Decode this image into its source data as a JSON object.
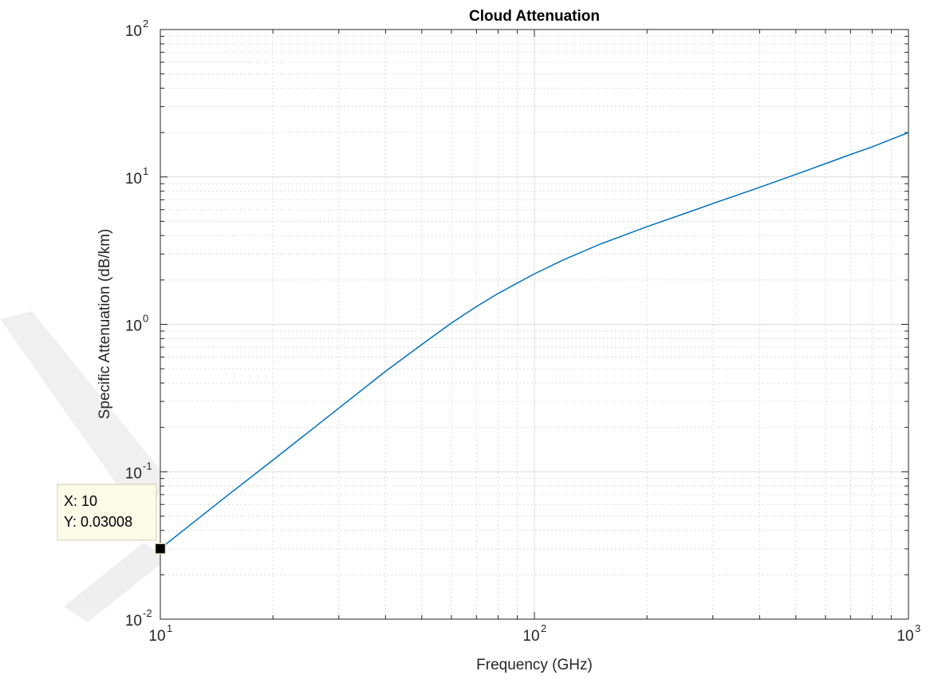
{
  "chart_data": {
    "type": "line",
    "title": "Cloud Attenuation",
    "xlabel": "Frequency (GHz)",
    "ylabel": "Specific Attenuation (dB/km)",
    "xscale": "log",
    "yscale": "log",
    "xlim": [
      10,
      1000
    ],
    "ylim": [
      0.01,
      100
    ],
    "grid": "major and minor",
    "x_ticks": [
      {
        "base": "10",
        "exp": "1",
        "value": 10
      },
      {
        "base": "10",
        "exp": "2",
        "value": 100
      },
      {
        "base": "10",
        "exp": "3",
        "value": 1000
      }
    ],
    "y_ticks": [
      {
        "base": "10",
        "exp": "-2",
        "value": 0.01
      },
      {
        "base": "10",
        "exp": "-1",
        "value": 0.1
      },
      {
        "base": "10",
        "exp": "0",
        "value": 1
      },
      {
        "base": "10",
        "exp": "1",
        "value": 10
      },
      {
        "base": "10",
        "exp": "2",
        "value": 100
      }
    ],
    "series": [
      {
        "color": "#0072bd",
        "x": [
          10,
          15,
          20,
          30,
          40,
          50,
          60,
          70,
          80,
          100,
          120,
          150,
          200,
          250,
          300,
          400,
          500,
          600,
          700,
          800,
          900,
          1000
        ],
        "y": [
          0.03008,
          0.068,
          0.12,
          0.27,
          0.48,
          0.73,
          1.02,
          1.32,
          1.62,
          2.2,
          2.75,
          3.5,
          4.6,
          5.6,
          6.6,
          8.5,
          10.4,
          12.3,
          14.2,
          16.0,
          18.0,
          20.0
        ]
      }
    ],
    "datatip": {
      "x_text": "X: 10",
      "y_text": "Y: 0.03008",
      "x": 10,
      "y": 0.03008
    }
  }
}
